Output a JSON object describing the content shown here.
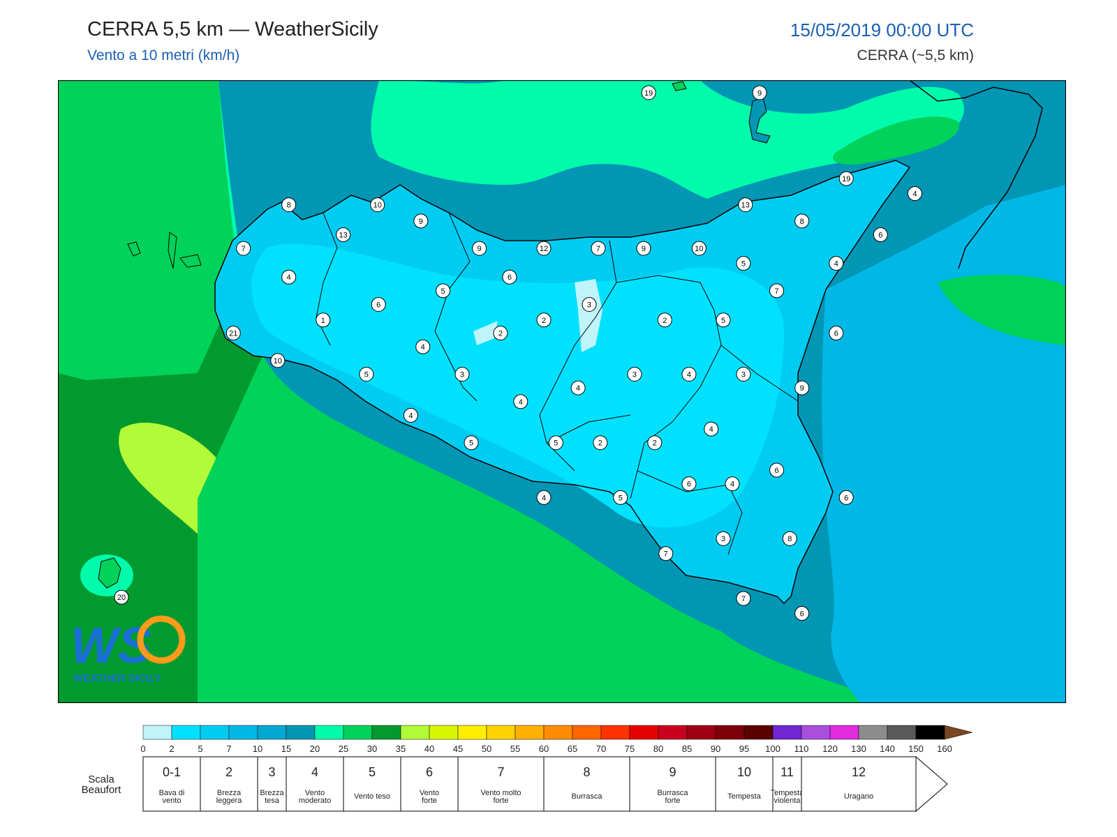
{
  "header": {
    "title": "CERRA 5,5 km — WeatherSicily",
    "subtitle": "Vento a 10 metri (km/h)",
    "datetime": "15/05/2019 00:00 UTC",
    "model": "CERRA (~5,5 km)"
  },
  "logo": {
    "text": "WEATHER SICILY",
    "initials": "WS"
  },
  "stations": [
    {
      "v": "19",
      "lon": 0.586,
      "lat": 0.02
    },
    {
      "v": "9",
      "lon": 0.696,
      "lat": 0.02
    },
    {
      "v": "19",
      "lon": 0.782,
      "lat": 0.158
    },
    {
      "v": "4",
      "lon": 0.85,
      "lat": 0.182
    },
    {
      "v": "8",
      "lon": 0.229,
      "lat": 0.2
    },
    {
      "v": "10",
      "lon": 0.317,
      "lat": 0.2
    },
    {
      "v": "13",
      "lon": 0.682,
      "lat": 0.2
    },
    {
      "v": "9",
      "lon": 0.36,
      "lat": 0.226
    },
    {
      "v": "8",
      "lon": 0.738,
      "lat": 0.226
    },
    {
      "v": "13",
      "lon": 0.283,
      "lat": 0.248
    },
    {
      "v": "6",
      "lon": 0.816,
      "lat": 0.248
    },
    {
      "v": "7",
      "lon": 0.184,
      "lat": 0.27
    },
    {
      "v": "9",
      "lon": 0.418,
      "lat": 0.27
    },
    {
      "v": "12",
      "lon": 0.482,
      "lat": 0.27
    },
    {
      "v": "7",
      "lon": 0.536,
      "lat": 0.27
    },
    {
      "v": "9",
      "lon": 0.581,
      "lat": 0.27
    },
    {
      "v": "10",
      "lon": 0.636,
      "lat": 0.27
    },
    {
      "v": "5",
      "lon": 0.68,
      "lat": 0.294
    },
    {
      "v": "4",
      "lon": 0.772,
      "lat": 0.294
    },
    {
      "v": "4",
      "lon": 0.229,
      "lat": 0.316
    },
    {
      "v": "6",
      "lon": 0.448,
      "lat": 0.316
    },
    {
      "v": "5",
      "lon": 0.382,
      "lat": 0.338
    },
    {
      "v": "7",
      "lon": 0.713,
      "lat": 0.338
    },
    {
      "v": "6",
      "lon": 0.318,
      "lat": 0.36
    },
    {
      "v": "3",
      "lon": 0.527,
      "lat": 0.36
    },
    {
      "v": "1",
      "lon": 0.263,
      "lat": 0.385
    },
    {
      "v": "2",
      "lon": 0.482,
      "lat": 0.385
    },
    {
      "v": "2",
      "lon": 0.602,
      "lat": 0.385
    },
    {
      "v": "5",
      "lon": 0.66,
      "lat": 0.385
    },
    {
      "v": "2",
      "lon": 0.439,
      "lat": 0.406
    },
    {
      "v": "6",
      "lon": 0.772,
      "lat": 0.406
    },
    {
      "v": "4",
      "lon": 0.362,
      "lat": 0.428
    },
    {
      "v": "5",
      "lon": 0.306,
      "lat": 0.472
    },
    {
      "v": "3",
      "lon": 0.401,
      "lat": 0.472
    },
    {
      "v": "3",
      "lon": 0.572,
      "lat": 0.472
    },
    {
      "v": "4",
      "lon": 0.626,
      "lat": 0.472
    },
    {
      "v": "3",
      "lon": 0.68,
      "lat": 0.472
    },
    {
      "v": "4",
      "lon": 0.516,
      "lat": 0.494
    },
    {
      "v": "9",
      "lon": 0.738,
      "lat": 0.494
    },
    {
      "v": "4",
      "lon": 0.459,
      "lat": 0.516
    },
    {
      "v": "4",
      "lon": 0.35,
      "lat": 0.538
    },
    {
      "v": "4",
      "lon": 0.648,
      "lat": 0.56
    },
    {
      "v": "5",
      "lon": 0.41,
      "lat": 0.582
    },
    {
      "v": "5",
      "lon": 0.494,
      "lat": 0.582
    },
    {
      "v": "2",
      "lon": 0.538,
      "lat": 0.582
    },
    {
      "v": "2",
      "lon": 0.592,
      "lat": 0.582
    },
    {
      "v": "6",
      "lon": 0.713,
      "lat": 0.626
    },
    {
      "v": "6",
      "lon": 0.626,
      "lat": 0.648
    },
    {
      "v": "4",
      "lon": 0.669,
      "lat": 0.648
    },
    {
      "v": "4",
      "lon": 0.482,
      "lat": 0.67
    },
    {
      "v": "5",
      "lon": 0.558,
      "lat": 0.67
    },
    {
      "v": "6",
      "lon": 0.782,
      "lat": 0.67
    },
    {
      "v": "7",
      "lon": 0.603,
      "lat": 0.76
    },
    {
      "v": "3",
      "lon": 0.66,
      "lat": 0.736
    },
    {
      "v": "8",
      "lon": 0.726,
      "lat": 0.736
    },
    {
      "v": "21",
      "lon": 0.174,
      "lat": 0.406
    },
    {
      "v": "10",
      "lon": 0.218,
      "lat": 0.45
    },
    {
      "v": "7",
      "lon": 0.68,
      "lat": 0.832
    },
    {
      "v": "6",
      "lon": 0.738,
      "lat": 0.856
    },
    {
      "v": "20",
      "lon": 0.063,
      "lat": 0.83
    }
  ],
  "colorbar": {
    "ticks": [
      "0",
      "2",
      "5",
      "7",
      "10",
      "15",
      "20",
      "25",
      "30",
      "35",
      "40",
      "45",
      "50",
      "55",
      "60",
      "65",
      "70",
      "75",
      "80",
      "85",
      "90",
      "95",
      "100",
      "110",
      "120",
      "130",
      "140",
      "150",
      "160"
    ],
    "colors": [
      "#bff4fb",
      "#00e1ff",
      "#00ccf2",
      "#00b8e6",
      "#00a8d2",
      "#0096b4",
      "#00fbab",
      "#00d25a",
      "#009a2e",
      "#b3fb38",
      "#d6f700",
      "#ffee00",
      "#ffd100",
      "#ffb000",
      "#ff8c00",
      "#ff6600",
      "#ff3300",
      "#e60000",
      "#c8001e",
      "#a00014",
      "#7d000a",
      "#5a0000",
      "#6e27d2",
      "#a84fdf",
      "#e12ce0",
      "#8c8c8c",
      "#5a5a5a",
      "#000000",
      "#7a4623",
      "#c9834c"
    ]
  },
  "beaufort": {
    "label_line1": "Scala",
    "label_line2": "Beaufort",
    "classes": [
      {
        "force": "0-1",
        "desc1": "Bava di",
        "desc2": "vento"
      },
      {
        "force": "2",
        "desc1": "Brezza",
        "desc2": "leggera"
      },
      {
        "force": "3",
        "desc1": "Brezza",
        "desc2": "tesa"
      },
      {
        "force": "4",
        "desc1": "Vento",
        "desc2": "moderato"
      },
      {
        "force": "5",
        "desc1": "Vento teso",
        "desc2": ""
      },
      {
        "force": "6",
        "desc1": "Vento",
        "desc2": "forte"
      },
      {
        "force": "7",
        "desc1": "Vento molto",
        "desc2": "forte"
      },
      {
        "force": "8",
        "desc1": "Burrasca",
        "desc2": ""
      },
      {
        "force": "9",
        "desc1": "Burrasca",
        "desc2": "forte"
      },
      {
        "force": "10",
        "desc1": "Tempesta",
        "desc2": ""
      },
      {
        "force": "11",
        "desc1": "Tempesta",
        "desc2": "violenta"
      },
      {
        "force": "12",
        "desc1": "Uragano",
        "desc2": ""
      }
    ]
  }
}
